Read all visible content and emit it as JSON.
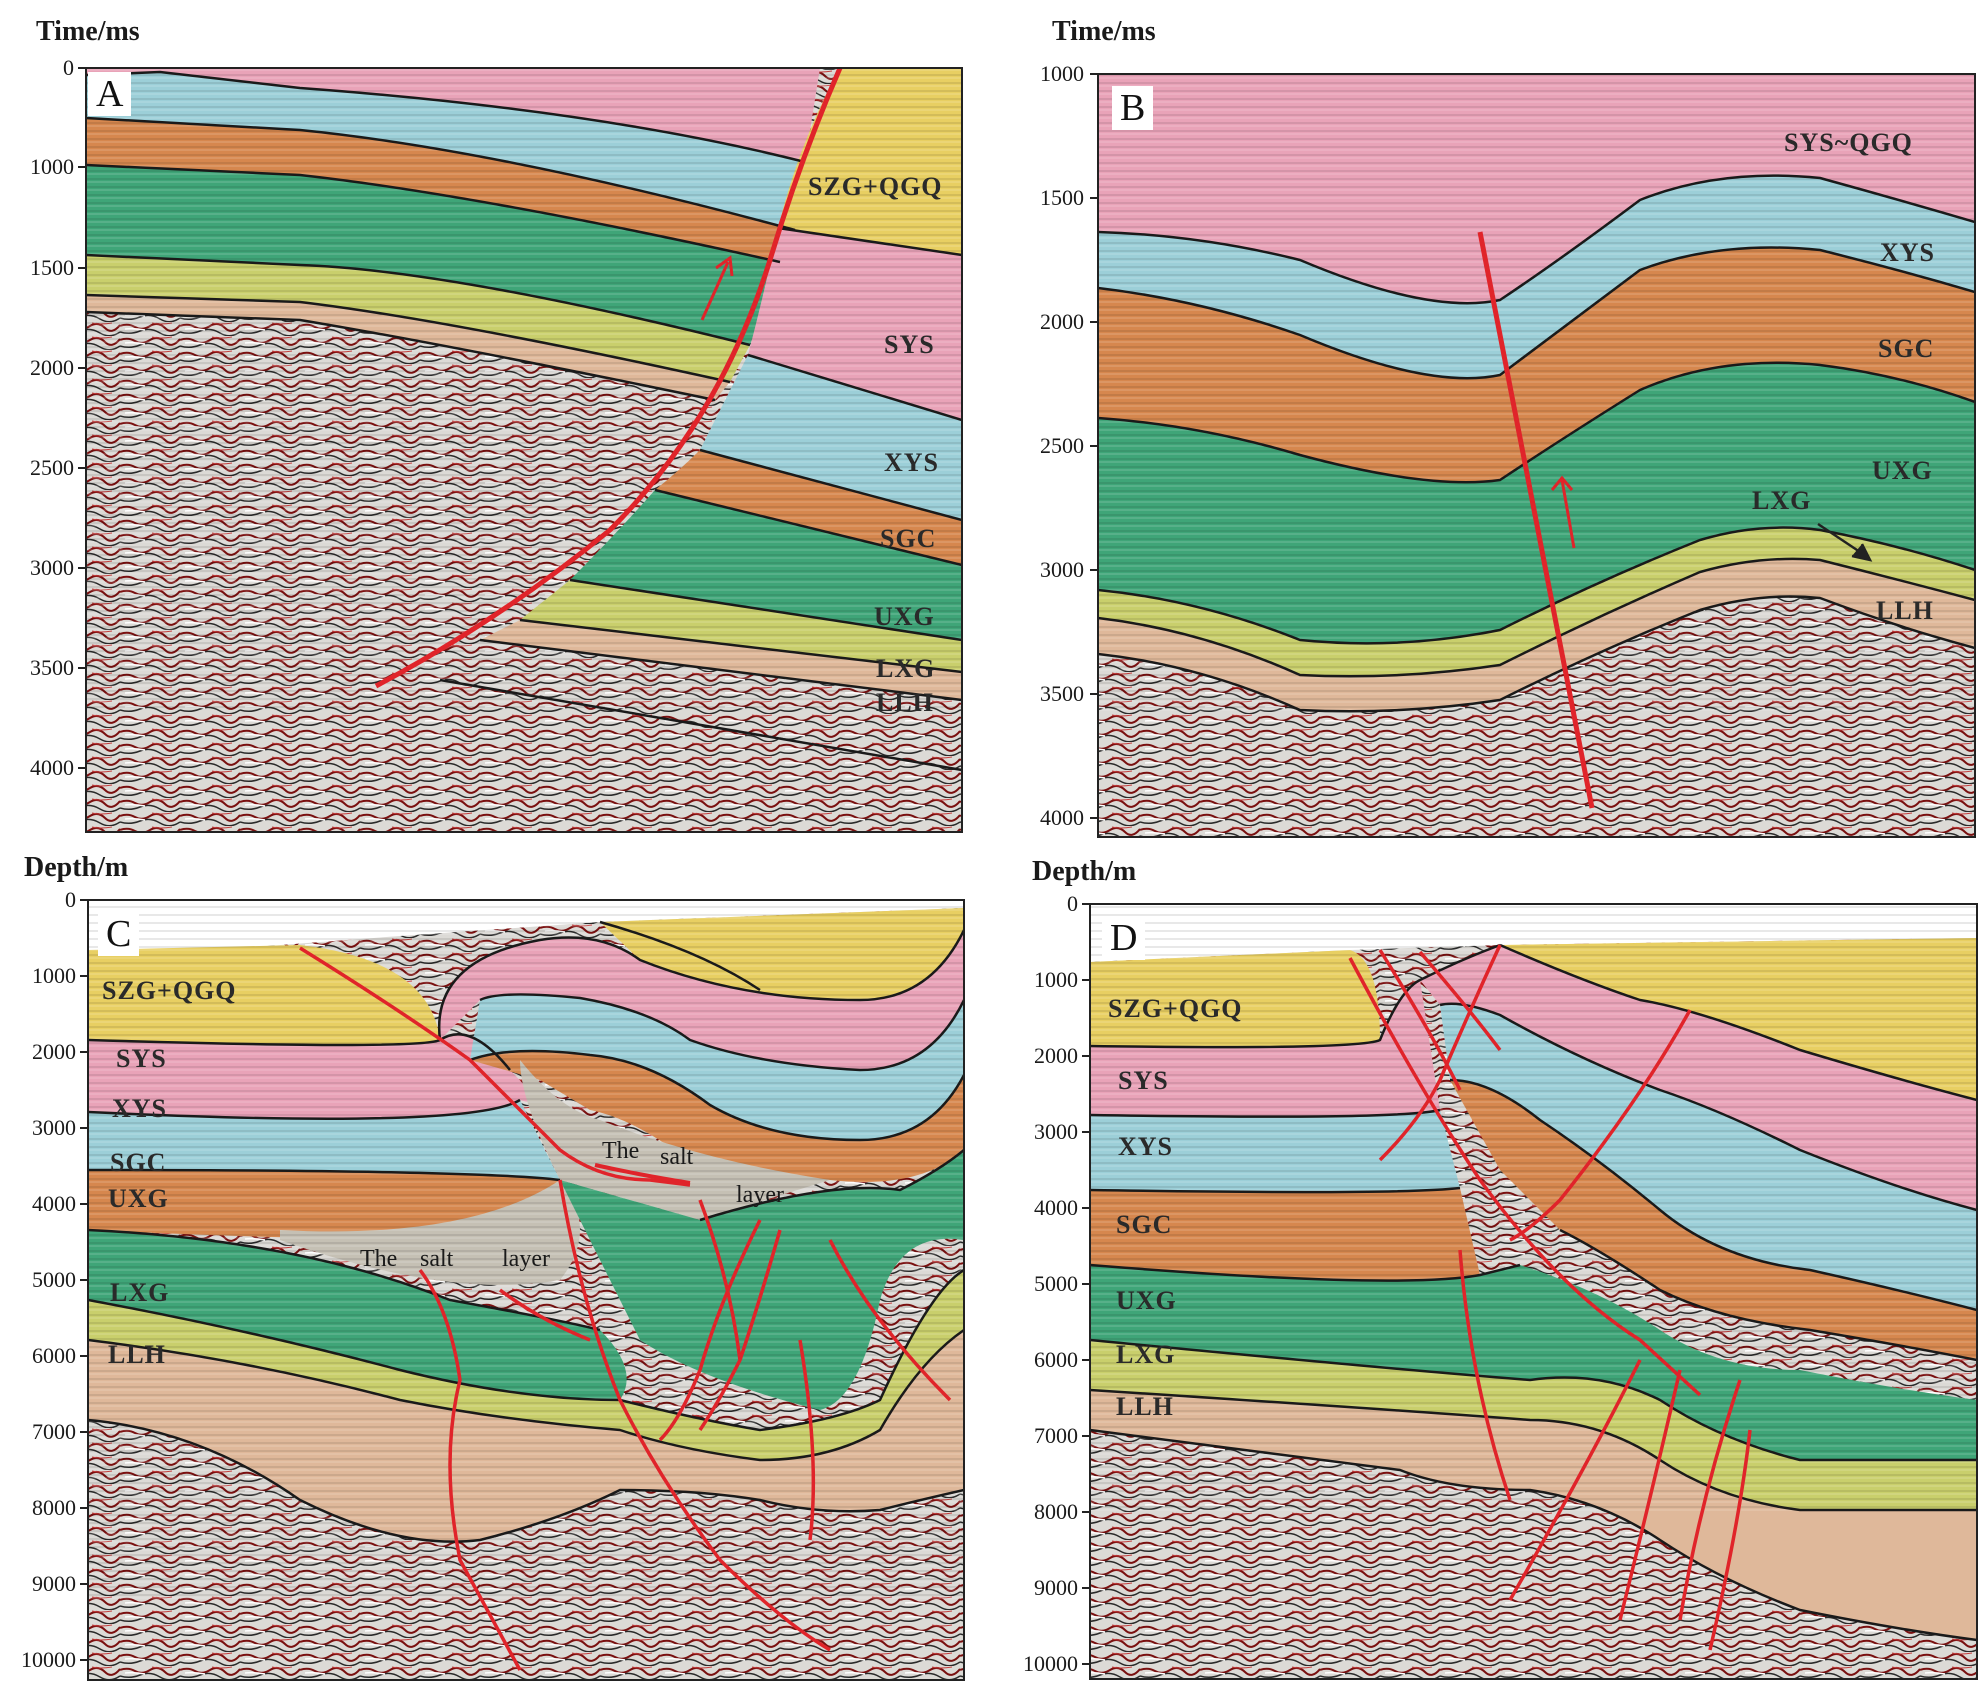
{
  "panels": {
    "A": {
      "letter": "A",
      "axis_title": "Time/ms",
      "ticks": [
        "0",
        "1000",
        "1500",
        "2000",
        "2500",
        "3000",
        "3500",
        "4000"
      ],
      "units": [
        "SZG+QGQ",
        "SYS",
        "XYS",
        "SGC",
        "UXG",
        "LXG",
        "LLH"
      ]
    },
    "B": {
      "letter": "B",
      "axis_title": "Time/ms",
      "ticks": [
        "1000",
        "1500",
        "2000",
        "2500",
        "3000",
        "3500",
        "4000"
      ],
      "units": [
        "SYS~QGQ",
        "XYS",
        "SGC",
        "UXG",
        "LXG",
        "LLH"
      ]
    },
    "C": {
      "letter": "C",
      "axis_title": "Depth/m",
      "ticks": [
        "0",
        "1000",
        "2000",
        "3000",
        "4000",
        "5000",
        "6000",
        "7000",
        "8000",
        "9000",
        "10000"
      ],
      "units": [
        "SZG+QGQ",
        "SYS",
        "XYS",
        "SGC",
        "UXG",
        "LXG",
        "LLH"
      ],
      "salt_words_upper": [
        "The",
        "salt",
        "layer"
      ],
      "salt_words_lower": [
        "The",
        "salt",
        "layer"
      ]
    },
    "D": {
      "letter": "D",
      "axis_title": "Depth/m",
      "ticks": [
        "0",
        "1000",
        "2000",
        "3000",
        "4000",
        "5000",
        "6000",
        "7000",
        "8000",
        "9000",
        "10000"
      ],
      "units": [
        "SZG+QGQ",
        "SYS",
        "XYS",
        "SGC",
        "UXG",
        "LXG",
        "LLH"
      ]
    }
  },
  "colors": {
    "szg_qgq": "#e8cf62",
    "sys": "#e9a3b8",
    "xys": "#9ccfd8",
    "sgc": "#d6874e",
    "uxg": "#3fa578",
    "lxg": "#c9cf6c",
    "llh": "#dfb89a",
    "salt": "#c5c0b4",
    "basement": "#d9d6d2",
    "fault": "#e0242a",
    "horizon": "#1a1a1a"
  }
}
